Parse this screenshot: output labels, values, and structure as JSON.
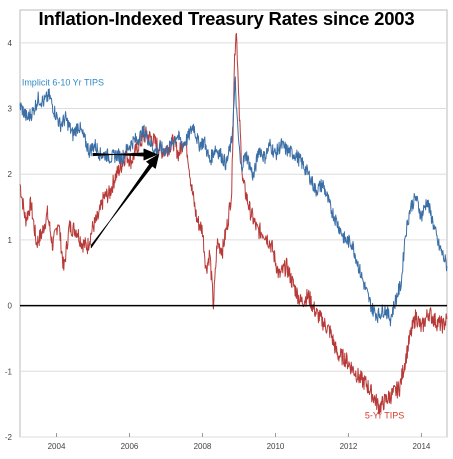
{
  "chart_data": {
    "type": "line",
    "title": "Inflation-Indexed Treasury Rates since 2003",
    "xlabel": "",
    "ylabel": "",
    "xlim": [
      2003.0,
      2014.7
    ],
    "ylim": [
      -2,
      4.5
    ],
    "x_ticks": [
      2004,
      2006,
      2008,
      2010,
      2012,
      2014
    ],
    "y_ticks": [
      -2,
      -1,
      0,
      1,
      2,
      3,
      4
    ],
    "grid": "y",
    "zero_line": 0,
    "series": [
      {
        "name": "Implicit 6-10 Yr TIPS",
        "color": "#3a6ea5",
        "points": [
          [
            2003.0,
            3.05
          ],
          [
            2003.2,
            2.85
          ],
          [
            2003.35,
            2.95
          ],
          [
            2003.5,
            3.15
          ],
          [
            2003.65,
            3.1
          ],
          [
            2003.8,
            3.2
          ],
          [
            2003.95,
            2.95
          ],
          [
            2004.1,
            2.75
          ],
          [
            2004.25,
            2.85
          ],
          [
            2004.45,
            2.6
          ],
          [
            2004.6,
            2.75
          ],
          [
            2004.75,
            2.55
          ],
          [
            2004.9,
            2.35
          ],
          [
            2005.05,
            2.45
          ],
          [
            2005.2,
            2.3
          ],
          [
            2005.35,
            2.3
          ],
          [
            2005.5,
            2.25
          ],
          [
            2005.65,
            2.3
          ],
          [
            2005.8,
            2.25
          ],
          [
            2005.95,
            2.4
          ],
          [
            2006.1,
            2.5
          ],
          [
            2006.25,
            2.55
          ],
          [
            2006.4,
            2.65
          ],
          [
            2006.55,
            2.5
          ],
          [
            2006.7,
            2.35
          ],
          [
            2006.85,
            2.4
          ],
          [
            2007.0,
            2.35
          ],
          [
            2007.15,
            2.45
          ],
          [
            2007.3,
            2.6
          ],
          [
            2007.45,
            2.45
          ],
          [
            2007.6,
            2.55
          ],
          [
            2007.75,
            2.75
          ],
          [
            2007.9,
            2.45
          ],
          [
            2008.05,
            2.5
          ],
          [
            2008.2,
            2.2
          ],
          [
            2008.35,
            2.4
          ],
          [
            2008.5,
            2.3
          ],
          [
            2008.65,
            2.15
          ],
          [
            2008.8,
            2.5
          ],
          [
            2008.9,
            3.4
          ],
          [
            2008.95,
            2.8
          ],
          [
            2009.05,
            2.1
          ],
          [
            2009.2,
            2.3
          ],
          [
            2009.4,
            1.95
          ],
          [
            2009.55,
            2.4
          ],
          [
            2009.7,
            2.25
          ],
          [
            2009.85,
            2.45
          ],
          [
            2010.0,
            2.3
          ],
          [
            2010.15,
            2.45
          ],
          [
            2010.35,
            2.35
          ],
          [
            2010.55,
            2.3
          ],
          [
            2010.75,
            2.15
          ],
          [
            2010.95,
            1.95
          ],
          [
            2011.1,
            1.75
          ],
          [
            2011.3,
            1.85
          ],
          [
            2011.5,
            1.5
          ],
          [
            2011.7,
            1.25
          ],
          [
            2011.9,
            1.0
          ],
          [
            2012.1,
            0.95
          ],
          [
            2012.3,
            0.55
          ],
          [
            2012.5,
            0.2
          ],
          [
            2012.65,
            -0.05
          ],
          [
            2012.8,
            -0.15
          ],
          [
            2013.0,
            -0.05
          ],
          [
            2013.15,
            -0.2
          ],
          [
            2013.3,
            0.1
          ],
          [
            2013.45,
            0.35
          ],
          [
            2013.55,
            1.05
          ],
          [
            2013.7,
            1.5
          ],
          [
            2013.85,
            1.65
          ],
          [
            2014.0,
            1.35
          ],
          [
            2014.15,
            1.6
          ],
          [
            2014.3,
            1.3
          ],
          [
            2014.45,
            0.95
          ],
          [
            2014.6,
            0.75
          ],
          [
            2014.7,
            0.6
          ]
        ]
      },
      {
        "name": "5-Yr TIPS",
        "color": "#b83a38",
        "points": [
          [
            2003.0,
            1.85
          ],
          [
            2003.15,
            1.3
          ],
          [
            2003.3,
            1.55
          ],
          [
            2003.45,
            0.95
          ],
          [
            2003.6,
            1.1
          ],
          [
            2003.75,
            1.4
          ],
          [
            2003.9,
            0.9
          ],
          [
            2004.05,
            1.3
          ],
          [
            2004.2,
            0.55
          ],
          [
            2004.35,
            1.2
          ],
          [
            2004.55,
            1.15
          ],
          [
            2004.7,
            0.95
          ],
          [
            2004.85,
            0.9
          ],
          [
            2005.0,
            1.2
          ],
          [
            2005.15,
            1.35
          ],
          [
            2005.3,
            1.65
          ],
          [
            2005.45,
            1.7
          ],
          [
            2005.6,
            1.95
          ],
          [
            2005.75,
            2.1
          ],
          [
            2005.9,
            2.3
          ],
          [
            2006.05,
            2.2
          ],
          [
            2006.25,
            2.45
          ],
          [
            2006.45,
            2.6
          ],
          [
            2006.6,
            2.55
          ],
          [
            2006.75,
            2.45
          ],
          [
            2006.9,
            2.35
          ],
          [
            2007.05,
            2.4
          ],
          [
            2007.2,
            2.5
          ],
          [
            2007.35,
            2.3
          ],
          [
            2007.5,
            2.55
          ],
          [
            2007.6,
            2.3
          ],
          [
            2007.7,
            1.8
          ],
          [
            2007.85,
            1.3
          ],
          [
            2008.0,
            1.15
          ],
          [
            2008.1,
            0.55
          ],
          [
            2008.2,
            0.8
          ],
          [
            2008.3,
            0.0
          ],
          [
            2008.4,
            0.95
          ],
          [
            2008.55,
            0.85
          ],
          [
            2008.7,
            1.3
          ],
          [
            2008.8,
            1.75
          ],
          [
            2008.88,
            3.8
          ],
          [
            2008.93,
            4.25
          ],
          [
            2009.0,
            3.0
          ],
          [
            2009.1,
            1.9
          ],
          [
            2009.3,
            1.45
          ],
          [
            2009.5,
            1.15
          ],
          [
            2009.7,
            1.1
          ],
          [
            2009.9,
            0.9
          ],
          [
            2010.1,
            0.45
          ],
          [
            2010.3,
            0.6
          ],
          [
            2010.5,
            0.3
          ],
          [
            2010.7,
            0.05
          ],
          [
            2010.9,
            0.15
          ],
          [
            2011.1,
            -0.1
          ],
          [
            2011.3,
            -0.25
          ],
          [
            2011.5,
            -0.4
          ],
          [
            2011.7,
            -0.75
          ],
          [
            2011.9,
            -0.8
          ],
          [
            2012.1,
            -0.95
          ],
          [
            2012.3,
            -1.1
          ],
          [
            2012.5,
            -1.2
          ],
          [
            2012.7,
            -1.4
          ],
          [
            2012.85,
            -1.55
          ],
          [
            2013.0,
            -1.45
          ],
          [
            2013.2,
            -1.35
          ],
          [
            2013.4,
            -1.25
          ],
          [
            2013.55,
            -0.85
          ],
          [
            2013.7,
            -0.45
          ],
          [
            2013.85,
            -0.15
          ],
          [
            2014.0,
            -0.35
          ],
          [
            2014.2,
            -0.1
          ],
          [
            2014.4,
            -0.25
          ],
          [
            2014.6,
            -0.3
          ],
          [
            2014.7,
            -0.2
          ]
        ]
      }
    ],
    "annotations": [
      {
        "text": "Implicit 6-10 Yr TIPS",
        "color": "#2e8bc6",
        "x": 2003.05,
        "y": 3.35
      },
      {
        "text": "5-Yr TIPS",
        "color": "#d23b2a",
        "x": 2012.45,
        "y": -1.72
      }
    ],
    "arrows": [
      {
        "from": [
          2005.0,
          2.3
        ],
        "to": [
          2006.75,
          2.3
        ],
        "color": "#000000"
      },
      {
        "from": [
          2004.95,
          0.9
        ],
        "to": [
          2006.8,
          2.3
        ],
        "color": "#000000"
      }
    ]
  }
}
